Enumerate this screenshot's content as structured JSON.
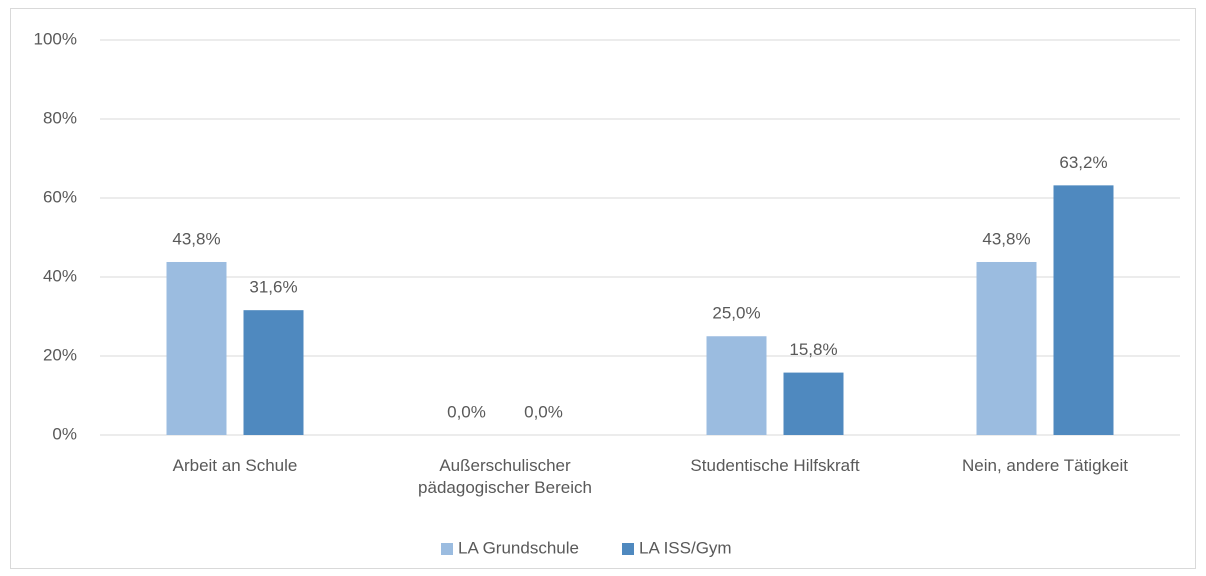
{
  "chart_data": {
    "type": "bar",
    "categories": [
      "Arbeit an Schule",
      "Außerschulischer pädagogischer Bereich",
      "Studentische Hilfskraft",
      "Nein, andere Tätigkeit"
    ],
    "series": [
      {
        "name": "LA Grundschule",
        "color": "#9bbce0",
        "values": [
          43.8,
          0,
          25.0,
          43.8
        ],
        "value_labels": [
          "43,8%",
          "0,0%",
          "25,0%",
          "43,8%"
        ]
      },
      {
        "name": "LA ISS/Gym",
        "color": "#4f89bf",
        "values": [
          31.6,
          0,
          15.8,
          63.2
        ],
        "value_labels": [
          "31,6%",
          "0,0%",
          "15,8%",
          "63,2%"
        ]
      }
    ],
    "ylim": [
      0,
      100
    ],
    "yticks": [
      {
        "value": 0,
        "label": "0%"
      },
      {
        "value": 20,
        "label": "20%"
      },
      {
        "value": 40,
        "label": "40%"
      },
      {
        "value": 60,
        "label": "60%"
      },
      {
        "value": 80,
        "label": "80%"
      },
      {
        "value": 100,
        "label": "100%"
      }
    ],
    "grid": true,
    "legend": "bottom"
  }
}
